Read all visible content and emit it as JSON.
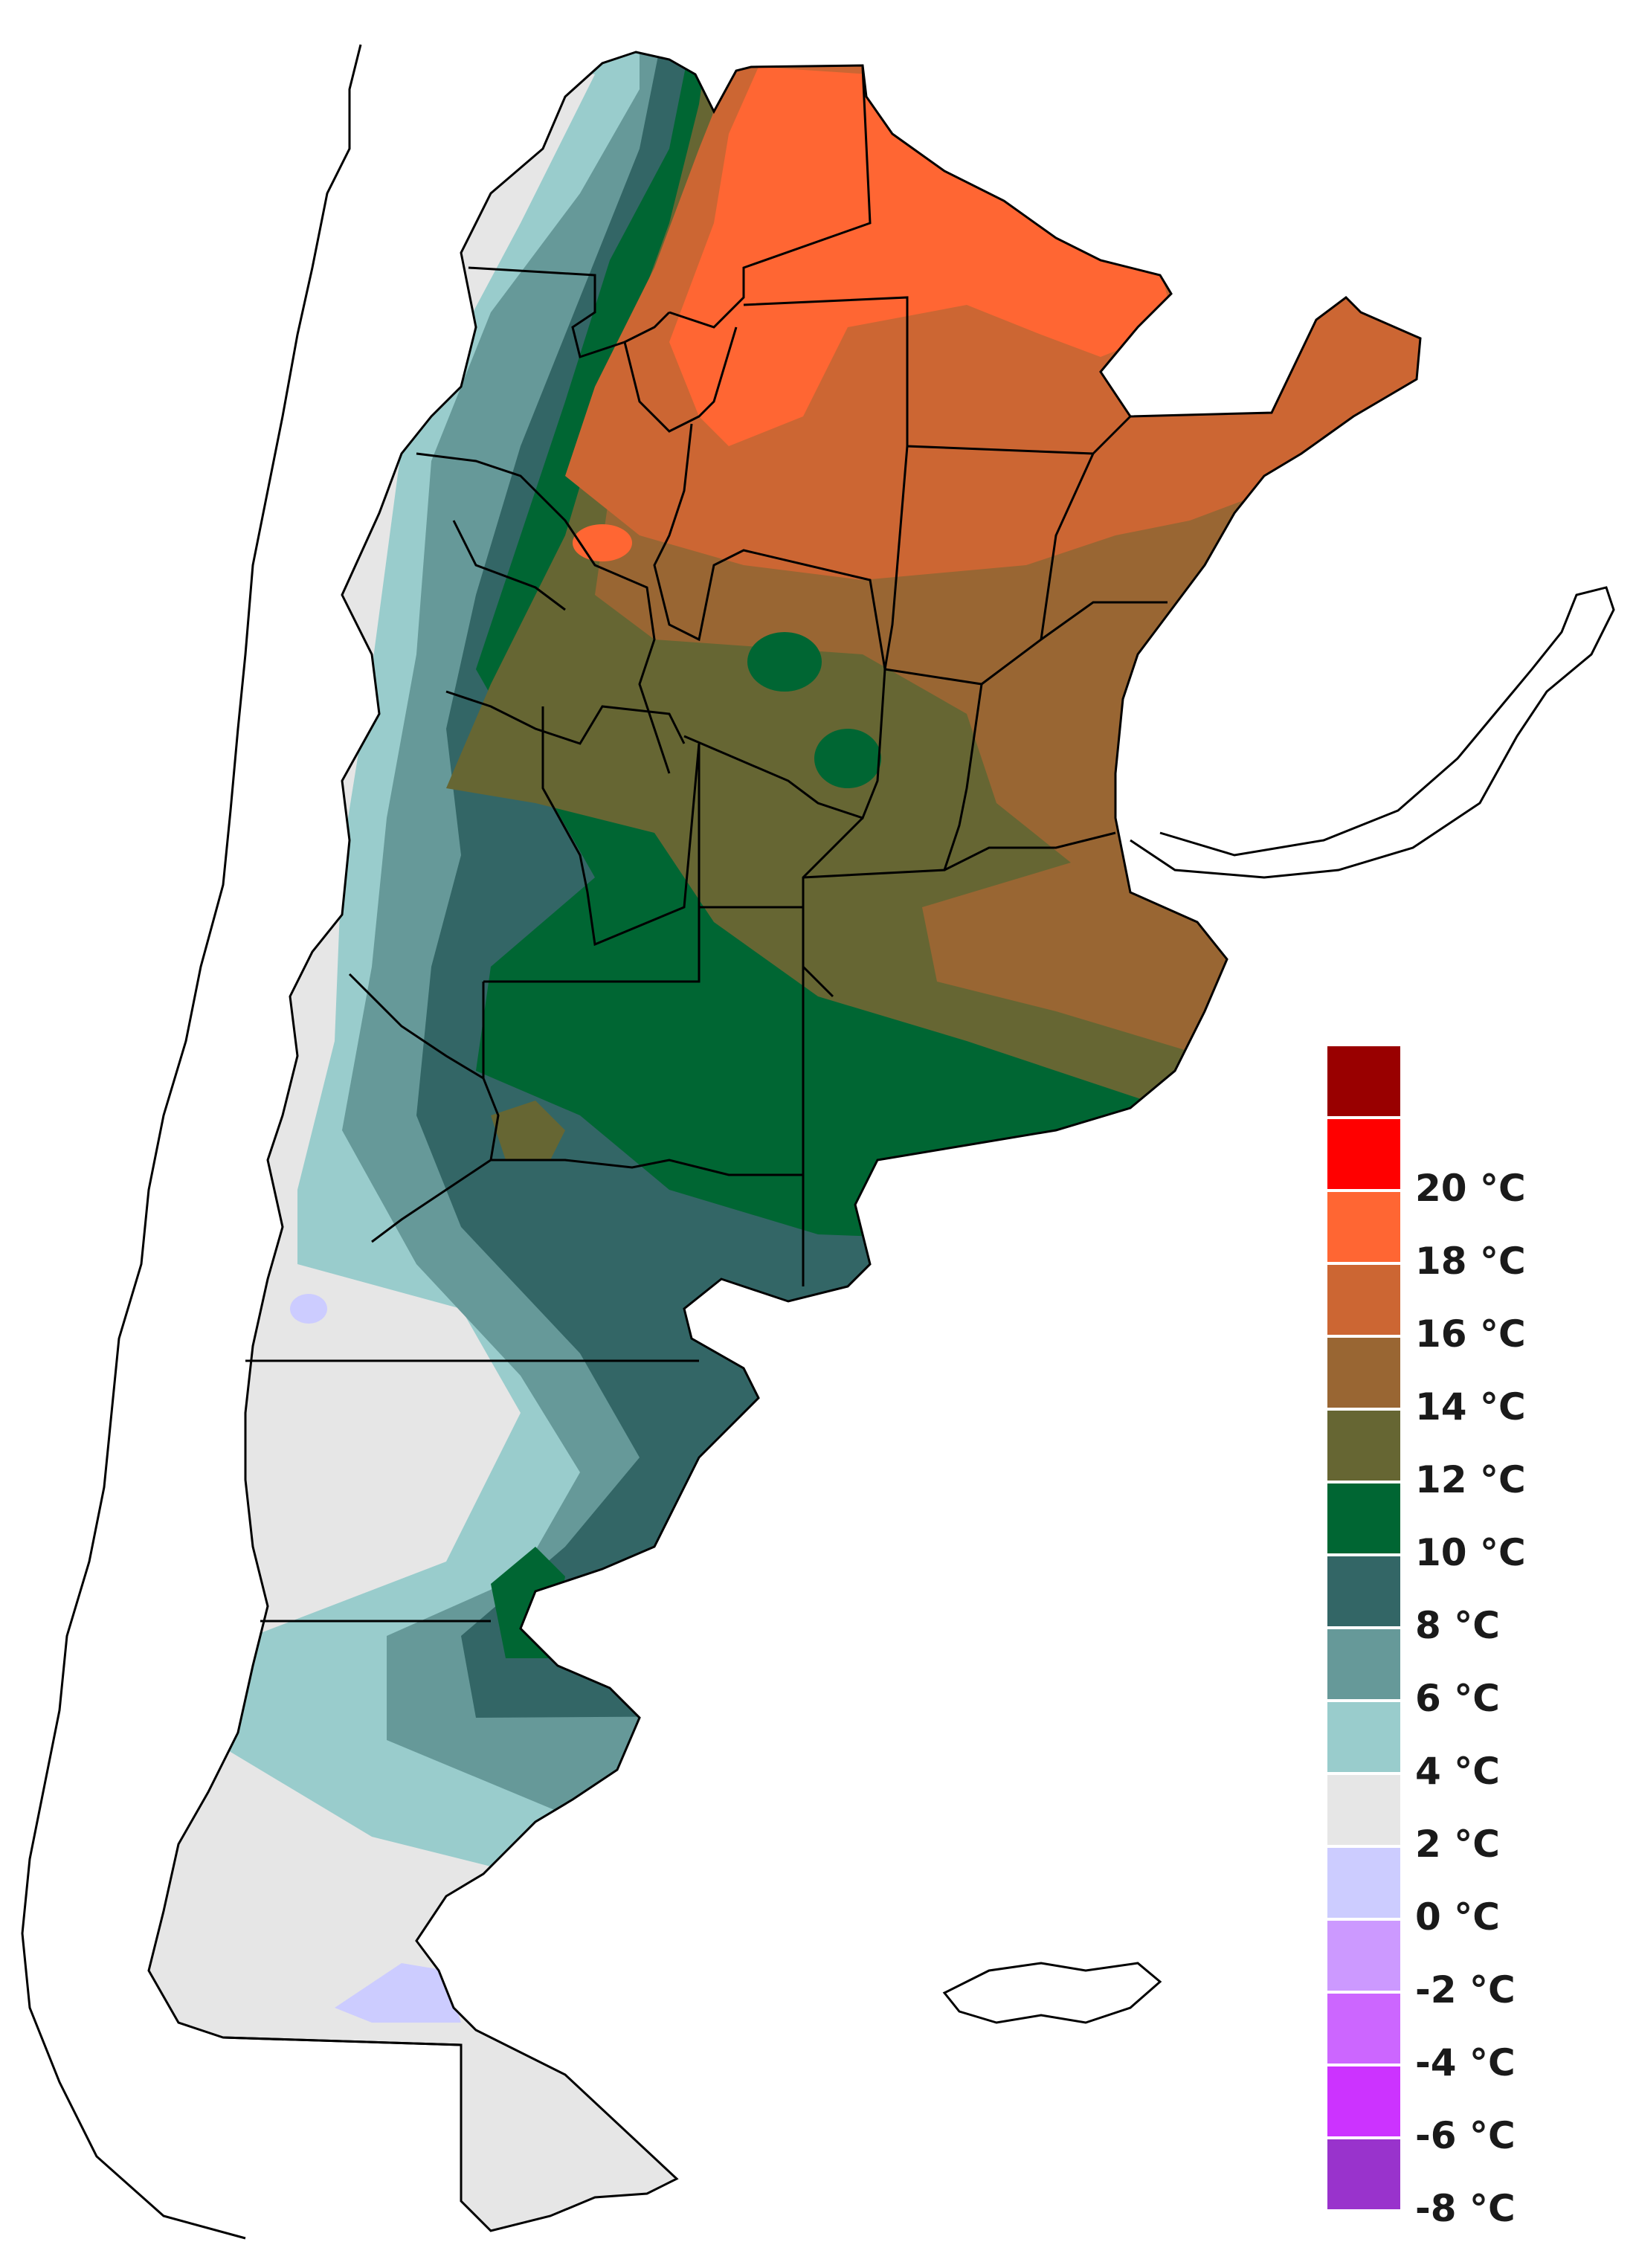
{
  "legend": {
    "entries": [
      {
        "color": "#990000",
        "label": ""
      },
      {
        "color": "#ff0000",
        "label": "20 °C"
      },
      {
        "color": "#ff6633",
        "label": "18 °C"
      },
      {
        "color": "#cc6633",
        "label": "16 °C"
      },
      {
        "color": "#996633",
        "label": "14 °C"
      },
      {
        "color": "#666633",
        "label": "12 °C"
      },
      {
        "color": "#006633",
        "label": "10 °C"
      },
      {
        "color": "#336666",
        "label": "8 °C"
      },
      {
        "color": "#669999",
        "label": "6 °C"
      },
      {
        "color": "#99cccc",
        "label": "4 °C"
      },
      {
        "color": "#e6e6e6",
        "label": "2 °C"
      },
      {
        "color": "#ccccff",
        "label": "0 °C"
      },
      {
        "color": "#cc99ff",
        "label": "-2 °C"
      },
      {
        "color": "#cc66ff",
        "label": "-4 °C"
      },
      {
        "color": "#cc33ff",
        "label": "-6 °C"
      },
      {
        "color": "#9933cc",
        "label": "-8 °C"
      }
    ]
  },
  "map": {
    "land_color": "#ffffff",
    "border_color": "#000000"
  }
}
